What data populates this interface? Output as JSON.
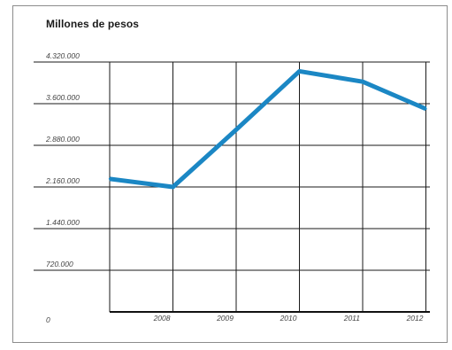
{
  "chart_data": {
    "type": "line",
    "title": "Millones de pesos",
    "xlabel": "",
    "ylabel": "",
    "x_ticks": [
      "2008",
      "2009",
      "2010",
      "2011",
      "2012"
    ],
    "y_ticks": [
      "0",
      "720.000",
      "1.440.000",
      "2.160.000",
      "2.880.000",
      "3.600.000",
      "4.320.000"
    ],
    "ylim": [
      0,
      4320000
    ],
    "grid": true,
    "series": [
      {
        "color": "#1b87c4",
        "points": [
          {
            "x": 2007,
            "y": 2300000
          },
          {
            "x": 2008,
            "y": 2160000
          },
          {
            "x": 2009,
            "y": 3150000
          },
          {
            "x": 2010,
            "y": 4160000
          },
          {
            "x": 2011,
            "y": 3980000
          },
          {
            "x": 2012,
            "y": 3510000
          }
        ]
      }
    ]
  }
}
